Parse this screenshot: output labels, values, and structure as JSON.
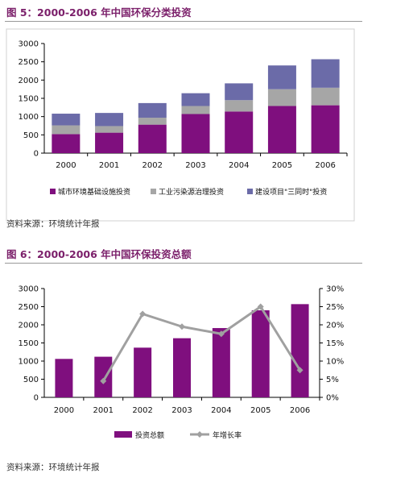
{
  "figure5": {
    "title": "图 5：2000-2006 年中国环保分类投资",
    "source": "资料来源：环境统计年报"
  },
  "figure6": {
    "title": "图 6：2000-2006 年中国环保投资总额",
    "source": "资料来源：环境统计年报"
  },
  "colors": {
    "title": "#7b1f6a",
    "series_purple": "#7f0f7e",
    "series_gray": "#a6a6a6",
    "series_slate": "#6b6ba8",
    "line_gray": "#a0a0a0"
  },
  "chart_data": [
    {
      "type": "bar",
      "stacked": true,
      "categories": [
        "2000",
        "2001",
        "2002",
        "2003",
        "2004",
        "2005",
        "2006"
      ],
      "series": [
        {
          "name": "城市环境基础设施投资",
          "values": [
            520,
            560,
            780,
            1070,
            1140,
            1290,
            1310
          ]
        },
        {
          "name": "工业污染源治理投资",
          "values": [
            240,
            180,
            190,
            220,
            310,
            460,
            480
          ]
        },
        {
          "name": "建设项目\"三同时\"投资",
          "values": [
            320,
            360,
            400,
            350,
            460,
            650,
            780
          ]
        }
      ],
      "ylim": [
        0,
        3000
      ],
      "yticks": [
        "0",
        "500",
        "1000",
        "1500",
        "2000",
        "2500",
        "3000"
      ],
      "legend": "bottom",
      "grid": false
    },
    {
      "type": "bar",
      "categories": [
        "2000",
        "2001",
        "2002",
        "2003",
        "2004",
        "2005",
        "2006"
      ],
      "series": [
        {
          "name": "投资总额",
          "type": "bar",
          "axis": "left",
          "values": [
            1060,
            1120,
            1370,
            1630,
            1910,
            2400,
            2570
          ]
        },
        {
          "name": "年增长率",
          "type": "line",
          "axis": "right",
          "values": [
            null,
            4.5,
            23,
            19.5,
            17.5,
            25,
            7.5
          ]
        }
      ],
      "ylim": [
        0,
        3000
      ],
      "yticks": [
        "0",
        "500",
        "1000",
        "1500",
        "2000",
        "2500",
        "3000"
      ],
      "y2lim": [
        0,
        30
      ],
      "y2ticks": [
        "0%",
        "5%",
        "10%",
        "15%",
        "20%",
        "25%",
        "30%"
      ],
      "legend": "bottom",
      "grid": false
    }
  ]
}
